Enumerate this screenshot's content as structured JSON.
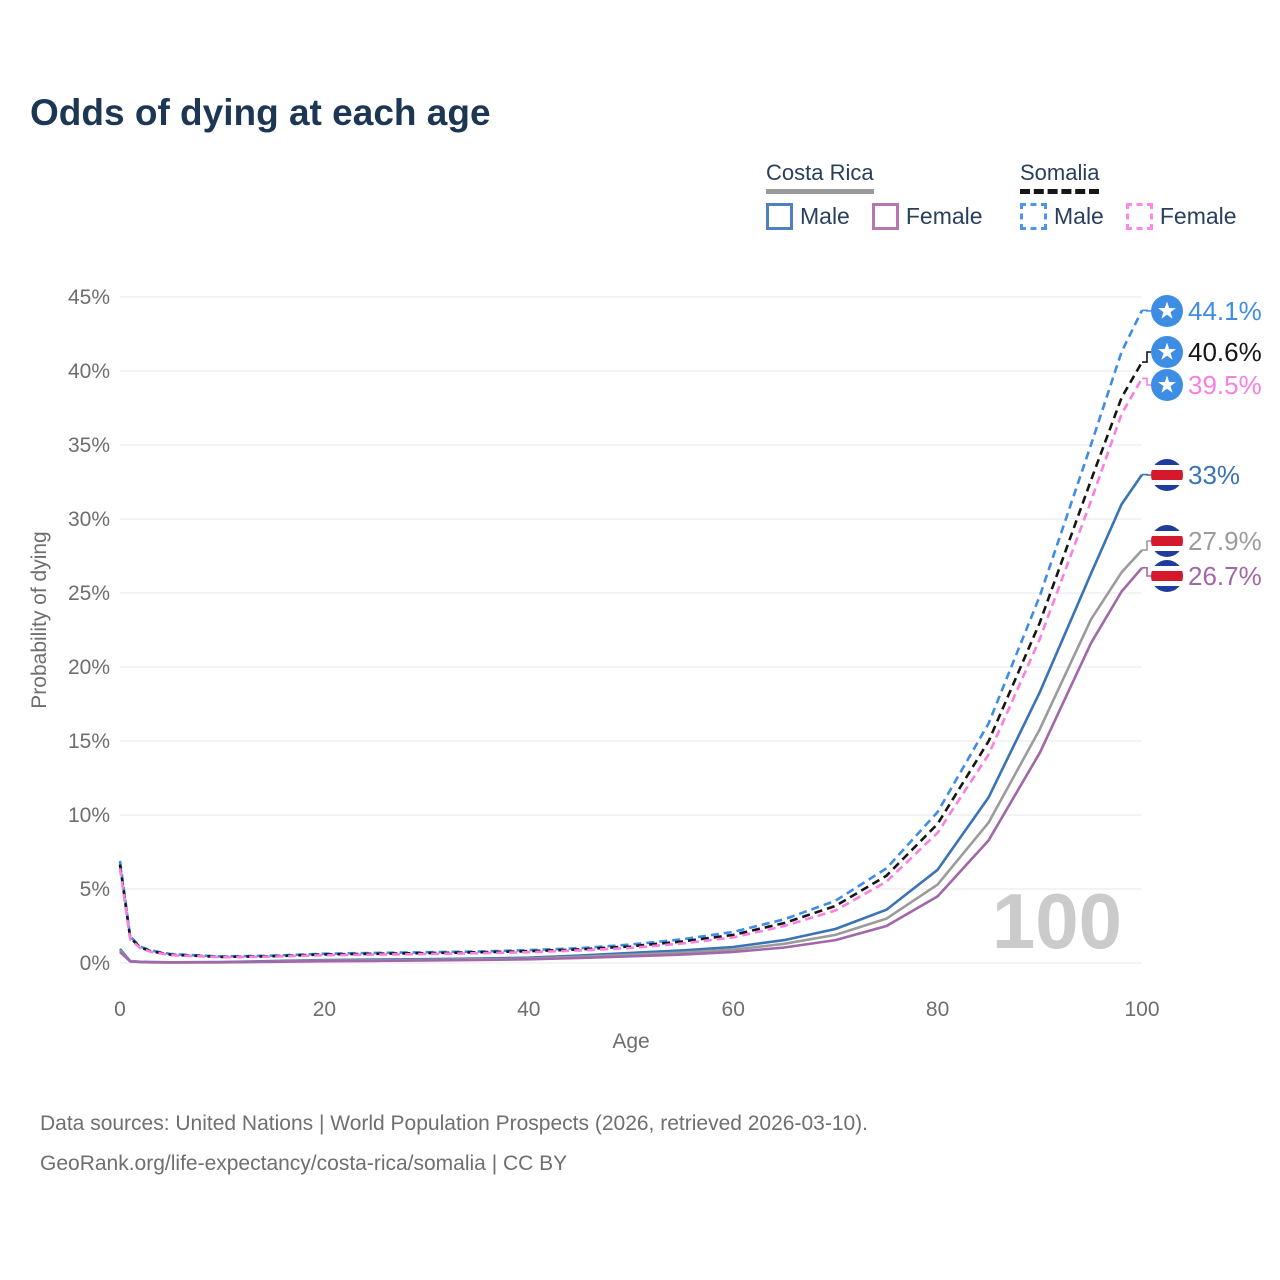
{
  "title": "Odds of dying at each age",
  "watermark": "100",
  "footer": {
    "line1": "Data sources: United Nations | World Population Prospects (2026, retrieved 2026-03-10).",
    "line2": "GeoRank.org/life-expectancy/costa-rica/somalia | CC BY"
  },
  "chart_data": {
    "type": "line",
    "title": "Odds of dying at each age",
    "xlabel": "Age",
    "ylabel": "Probability of dying",
    "xlim": [
      0,
      100
    ],
    "ylim_pct": [
      0,
      46
    ],
    "x_ticks": [
      0,
      20,
      40,
      60,
      80,
      100
    ],
    "y_ticks_pct": [
      0,
      5,
      10,
      15,
      20,
      25,
      30,
      35,
      40,
      45
    ],
    "y_tick_suffix": "%",
    "grid": "horizontal",
    "gridline_color": "#ececec",
    "tick_label_color": "#6e6e6e",
    "watermark_color": "#cbcbcb",
    "x_ages": [
      0,
      1,
      2,
      3,
      5,
      10,
      15,
      20,
      25,
      30,
      35,
      40,
      45,
      50,
      55,
      60,
      65,
      70,
      75,
      80,
      85,
      90,
      95,
      98,
      100
    ],
    "series": [
      {
        "id": "somalia-male",
        "name": "Somalia – Male",
        "color": "#3f8ce8",
        "dash": true,
        "flag": "somalia",
        "end_label": "44.1%",
        "end_value_pct": 44.1,
        "values_pct": [
          6.9,
          1.8,
          1.1,
          0.85,
          0.6,
          0.44,
          0.5,
          0.63,
          0.68,
          0.73,
          0.78,
          0.87,
          1.0,
          1.25,
          1.6,
          2.1,
          2.95,
          4.2,
          6.4,
          10.2,
          16.2,
          24.8,
          35.0,
          41.3,
          44.1
        ]
      },
      {
        "id": "somalia-both",
        "name": "Somalia – Both sexes",
        "color": "#161616",
        "dash": true,
        "flag": "somalia",
        "end_label": "40.6%",
        "end_value_pct": 40.6,
        "values_pct": [
          6.65,
          1.7,
          1.05,
          0.8,
          0.56,
          0.41,
          0.46,
          0.58,
          0.62,
          0.67,
          0.72,
          0.8,
          0.92,
          1.13,
          1.45,
          1.9,
          2.7,
          3.85,
          5.9,
          9.4,
          15.0,
          23.0,
          32.6,
          38.2,
          40.6
        ]
      },
      {
        "id": "somalia-female",
        "name": "Somalia – Female",
        "color": "#fb7ee1",
        "dash": true,
        "flag": "somalia",
        "end_label": "39.5%",
        "end_value_pct": 39.5,
        "values_pct": [
          6.4,
          1.6,
          1.0,
          0.76,
          0.53,
          0.39,
          0.43,
          0.53,
          0.57,
          0.61,
          0.66,
          0.73,
          0.85,
          1.02,
          1.32,
          1.73,
          2.5,
          3.55,
          5.5,
          8.8,
          14.1,
          21.9,
          31.2,
          37.1,
          39.5
        ]
      },
      {
        "id": "costa-rica-male",
        "name": "Costa Rica – Male",
        "color": "#3a74b5",
        "dash": false,
        "flag": "costa-rica",
        "end_label": "33%",
        "end_value_pct": 33.0,
        "values_pct": [
          0.95,
          0.13,
          0.08,
          0.06,
          0.05,
          0.06,
          0.13,
          0.2,
          0.23,
          0.26,
          0.3,
          0.36,
          0.5,
          0.68,
          0.85,
          1.08,
          1.55,
          2.3,
          3.6,
          6.3,
          11.2,
          18.3,
          26.3,
          31.0,
          33.0
        ]
      },
      {
        "id": "costa-rica-both",
        "name": "Costa Rica – Both sexes",
        "color": "#9b9b9b",
        "dash": false,
        "flag": "costa-rica",
        "end_label": "27.9%",
        "end_value_pct": 27.9,
        "values_pct": [
          0.85,
          0.12,
          0.07,
          0.05,
          0.045,
          0.05,
          0.1,
          0.16,
          0.18,
          0.21,
          0.25,
          0.3,
          0.42,
          0.56,
          0.7,
          0.9,
          1.3,
          1.9,
          3.0,
          5.3,
          9.5,
          15.8,
          23.2,
          26.4,
          27.9
        ]
      },
      {
        "id": "costa-rica-female",
        "name": "Costa Rica – Female",
        "color": "#a167a9",
        "dash": false,
        "flag": "costa-rica",
        "end_label": "26.7%",
        "end_value_pct": 26.7,
        "values_pct": [
          0.75,
          0.11,
          0.06,
          0.045,
          0.04,
          0.045,
          0.08,
          0.12,
          0.14,
          0.17,
          0.2,
          0.25,
          0.34,
          0.45,
          0.57,
          0.74,
          1.05,
          1.55,
          2.5,
          4.5,
          8.3,
          14.2,
          21.6,
          25.1,
          26.7
        ]
      }
    ],
    "legend": {
      "groups": [
        {
          "id": "costa-rica",
          "label": "Costa Rica",
          "underline_style": "solid",
          "underline_color": "#9a9a9a",
          "items": [
            {
              "label": "Male",
              "color": "#4e81bd",
              "dash": false
            },
            {
              "label": "Female",
              "color": "#b776b0",
              "dash": false
            }
          ]
        },
        {
          "id": "somalia",
          "label": "Somalia",
          "underline_style": "dashed",
          "underline_color": "#161616",
          "items": [
            {
              "label": "Male",
              "color": "#4d94f2",
              "dash": true
            },
            {
              "label": "Female",
              "color": "#ff87e8",
              "dash": true
            }
          ]
        }
      ]
    },
    "flag_colors": {
      "somalia_circle": "#3d8de4",
      "somalia_star": "#ffffff",
      "costa_rica_blue": "#1d3c9c",
      "costa_rica_white": "#ffffff",
      "costa_rica_red": "#d4192c"
    }
  }
}
